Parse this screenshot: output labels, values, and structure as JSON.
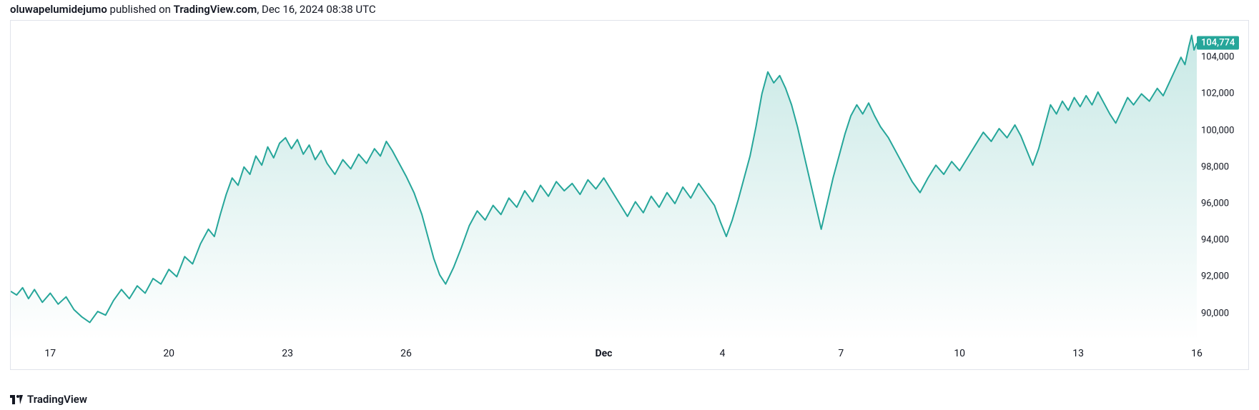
{
  "header": {
    "author": "oluwapelumidejumo",
    "middle": " published on ",
    "site": "TradingView.com",
    "timestamp": ", Dec 16, 2024 08:38 UTC"
  },
  "footer": {
    "brand": "TradingView"
  },
  "chart": {
    "type": "area",
    "line_color": "#26a69a",
    "line_width": 2,
    "fill_top_color": "rgba(38,166,154,0.25)",
    "fill_bottom_color": "rgba(38,166,154,0.0)",
    "background_color": "#ffffff",
    "border_color": "#e0e3eb",
    "y_axis": {
      "min": 88500,
      "max": 106000,
      "ticks": [
        90000,
        92000,
        94000,
        96000,
        98000,
        100000,
        102000,
        104000
      ],
      "tick_labels": [
        "90,000",
        "92,000",
        "94,000",
        "96,000",
        "98,000",
        "100,000",
        "102,000",
        "104,000"
      ],
      "tick_color": "#131722",
      "tick_fontsize": 13
    },
    "x_axis": {
      "min": 0,
      "max": 30,
      "ticks": [
        {
          "pos": 1.0,
          "label": "17",
          "bold": false
        },
        {
          "pos": 4.0,
          "label": "20",
          "bold": false
        },
        {
          "pos": 7.0,
          "label": "23",
          "bold": false
        },
        {
          "pos": 10.0,
          "label": "26",
          "bold": false
        },
        {
          "pos": 15.0,
          "label": "Dec",
          "bold": true
        },
        {
          "pos": 18.0,
          "label": "4",
          "bold": false
        },
        {
          "pos": 21.0,
          "label": "7",
          "bold": false
        },
        {
          "pos": 24.0,
          "label": "10",
          "bold": false
        },
        {
          "pos": 27.0,
          "label": "13",
          "bold": false
        },
        {
          "pos": 30.0,
          "label": "16",
          "bold": false
        }
      ],
      "tick_color": "#131722",
      "tick_fontsize": 14
    },
    "current_price": {
      "value": 104774,
      "label": "104,774",
      "badge_bg": "#26a69a",
      "badge_fg": "#ffffff"
    },
    "series": [
      [
        0.0,
        91200
      ],
      [
        0.15,
        91000
      ],
      [
        0.3,
        91400
      ],
      [
        0.45,
        90800
      ],
      [
        0.6,
        91300
      ],
      [
        0.8,
        90600
      ],
      [
        1.0,
        91100
      ],
      [
        1.2,
        90500
      ],
      [
        1.4,
        90900
      ],
      [
        1.6,
        90200
      ],
      [
        1.8,
        89800
      ],
      [
        2.0,
        89500
      ],
      [
        2.2,
        90100
      ],
      [
        2.4,
        89900
      ],
      [
        2.6,
        90700
      ],
      [
        2.8,
        91300
      ],
      [
        3.0,
        90800
      ],
      [
        3.2,
        91500
      ],
      [
        3.4,
        91100
      ],
      [
        3.6,
        91900
      ],
      [
        3.8,
        91600
      ],
      [
        4.0,
        92400
      ],
      [
        4.2,
        92000
      ],
      [
        4.4,
        93100
      ],
      [
        4.6,
        92700
      ],
      [
        4.8,
        93800
      ],
      [
        5.0,
        94600
      ],
      [
        5.15,
        94200
      ],
      [
        5.3,
        95400
      ],
      [
        5.45,
        96500
      ],
      [
        5.6,
        97400
      ],
      [
        5.75,
        97000
      ],
      [
        5.9,
        98000
      ],
      [
        6.05,
        97600
      ],
      [
        6.2,
        98600
      ],
      [
        6.35,
        98100
      ],
      [
        6.5,
        99100
      ],
      [
        6.65,
        98500
      ],
      [
        6.8,
        99300
      ],
      [
        6.95,
        99600
      ],
      [
        7.1,
        99000
      ],
      [
        7.25,
        99500
      ],
      [
        7.4,
        98700
      ],
      [
        7.55,
        99200
      ],
      [
        7.7,
        98400
      ],
      [
        7.85,
        98900
      ],
      [
        8.0,
        98200
      ],
      [
        8.2,
        97600
      ],
      [
        8.4,
        98400
      ],
      [
        8.6,
        97900
      ],
      [
        8.8,
        98700
      ],
      [
        9.0,
        98200
      ],
      [
        9.2,
        99000
      ],
      [
        9.35,
        98600
      ],
      [
        9.5,
        99400
      ],
      [
        9.65,
        98900
      ],
      [
        9.8,
        98300
      ],
      [
        10.0,
        97500
      ],
      [
        10.2,
        96600
      ],
      [
        10.4,
        95400
      ],
      [
        10.55,
        94200
      ],
      [
        10.7,
        93000
      ],
      [
        10.85,
        92100
      ],
      [
        11.0,
        91600
      ],
      [
        11.2,
        92500
      ],
      [
        11.4,
        93600
      ],
      [
        11.6,
        94800
      ],
      [
        11.8,
        95600
      ],
      [
        12.0,
        95100
      ],
      [
        12.2,
        95900
      ],
      [
        12.4,
        95400
      ],
      [
        12.6,
        96300
      ],
      [
        12.8,
        95800
      ],
      [
        13.0,
        96700
      ],
      [
        13.2,
        96100
      ],
      [
        13.4,
        97000
      ],
      [
        13.6,
        96400
      ],
      [
        13.8,
        97200
      ],
      [
        14.0,
        96700
      ],
      [
        14.2,
        97100
      ],
      [
        14.4,
        96500
      ],
      [
        14.6,
        97300
      ],
      [
        14.8,
        96800
      ],
      [
        15.0,
        97400
      ],
      [
        15.2,
        96700
      ],
      [
        15.4,
        96000
      ],
      [
        15.6,
        95300
      ],
      [
        15.8,
        96100
      ],
      [
        16.0,
        95500
      ],
      [
        16.2,
        96400
      ],
      [
        16.4,
        95800
      ],
      [
        16.6,
        96600
      ],
      [
        16.8,
        96000
      ],
      [
        17.0,
        96900
      ],
      [
        17.2,
        96300
      ],
      [
        17.4,
        97100
      ],
      [
        17.6,
        96500
      ],
      [
        17.8,
        95900
      ],
      [
        17.95,
        95000
      ],
      [
        18.1,
        94200
      ],
      [
        18.25,
        95100
      ],
      [
        18.4,
        96200
      ],
      [
        18.55,
        97400
      ],
      [
        18.7,
        98600
      ],
      [
        18.85,
        100200
      ],
      [
        19.0,
        102000
      ],
      [
        19.15,
        103200
      ],
      [
        19.3,
        102600
      ],
      [
        19.45,
        103000
      ],
      [
        19.6,
        102300
      ],
      [
        19.75,
        101400
      ],
      [
        19.9,
        100200
      ],
      [
        20.05,
        98800
      ],
      [
        20.2,
        97400
      ],
      [
        20.35,
        96000
      ],
      [
        20.5,
        94600
      ],
      [
        20.65,
        96000
      ],
      [
        20.8,
        97400
      ],
      [
        20.95,
        98600
      ],
      [
        21.1,
        99800
      ],
      [
        21.25,
        100800
      ],
      [
        21.4,
        101400
      ],
      [
        21.55,
        100900
      ],
      [
        21.7,
        101500
      ],
      [
        21.85,
        100800
      ],
      [
        22.0,
        100200
      ],
      [
        22.2,
        99600
      ],
      [
        22.4,
        98800
      ],
      [
        22.6,
        98000
      ],
      [
        22.8,
        97200
      ],
      [
        23.0,
        96600
      ],
      [
        23.2,
        97400
      ],
      [
        23.4,
        98100
      ],
      [
        23.6,
        97600
      ],
      [
        23.8,
        98300
      ],
      [
        24.0,
        97800
      ],
      [
        24.2,
        98500
      ],
      [
        24.4,
        99200
      ],
      [
        24.6,
        99900
      ],
      [
        24.8,
        99400
      ],
      [
        25.0,
        100100
      ],
      [
        25.2,
        99600
      ],
      [
        25.4,
        100300
      ],
      [
        25.55,
        99700
      ],
      [
        25.7,
        98900
      ],
      [
        25.85,
        98100
      ],
      [
        26.0,
        99000
      ],
      [
        26.15,
        100200
      ],
      [
        26.3,
        101400
      ],
      [
        26.45,
        100900
      ],
      [
        26.6,
        101600
      ],
      [
        26.75,
        101100
      ],
      [
        26.9,
        101800
      ],
      [
        27.05,
        101300
      ],
      [
        27.2,
        101900
      ],
      [
        27.35,
        101400
      ],
      [
        27.5,
        102100
      ],
      [
        27.65,
        101500
      ],
      [
        27.8,
        100900
      ],
      [
        27.95,
        100400
      ],
      [
        28.1,
        101100
      ],
      [
        28.25,
        101800
      ],
      [
        28.4,
        101400
      ],
      [
        28.6,
        102000
      ],
      [
        28.8,
        101600
      ],
      [
        29.0,
        102300
      ],
      [
        29.15,
        101900
      ],
      [
        29.3,
        102600
      ],
      [
        29.45,
        103300
      ],
      [
        29.6,
        104000
      ],
      [
        29.7,
        103600
      ],
      [
        29.8,
        104600
      ],
      [
        29.87,
        105200
      ],
      [
        29.93,
        104400
      ],
      [
        30.0,
        104774
      ]
    ]
  }
}
